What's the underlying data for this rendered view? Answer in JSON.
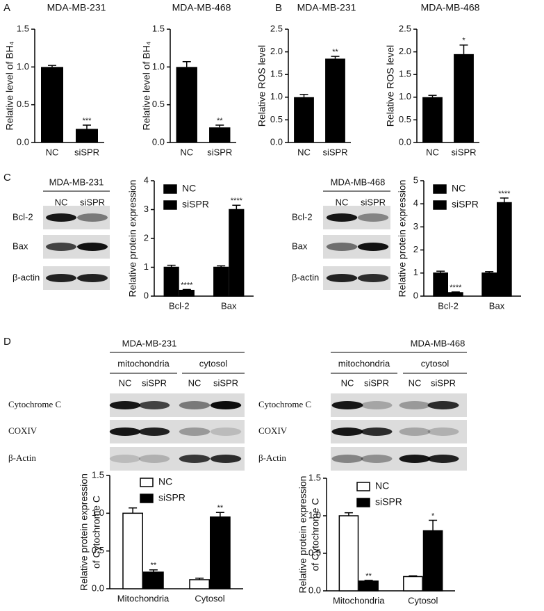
{
  "panel_labels": [
    "A",
    "B",
    "C",
    "D"
  ],
  "blots": [
    {
      "title": "MDA-MB-231",
      "lanes": [
        "NC",
        "siSPR"
      ],
      "rows": [
        "Bcl-2",
        "Bax",
        "β-actin"
      ]
    },
    {
      "title": "MDA-MB-468",
      "lanes": [
        "NC",
        "siSPR"
      ],
      "rows": [
        "Bcl-2",
        "Bax",
        "β-actin"
      ]
    },
    {
      "title": "MDA-MB-231",
      "groups": [
        "mitochondria",
        "cytosol"
      ],
      "lanes": [
        "NC",
        "siSPR",
        "NC",
        "siSPR"
      ],
      "rows": [
        "Cytochrome C",
        "COXIV",
        "β-Actin"
      ]
    },
    {
      "title": "MDA-MB-468",
      "groups": [
        "mitochondria",
        "cytosol"
      ],
      "lanes": [
        "NC",
        "siSPR",
        "NC",
        "siSPR"
      ],
      "rows": [
        "Cytochrome C",
        "COXIV",
        "β-Actin"
      ]
    }
  ],
  "chart_data": [
    {
      "type": "bar",
      "title": "MDA-MB-231",
      "y_label": "Relative level of BH₄",
      "categories": [
        "NC",
        "siSPR"
      ],
      "values": [
        1.0,
        0.18
      ],
      "errors": [
        0.02,
        0.05
      ],
      "markers": [
        null,
        "***"
      ],
      "color": "#000000",
      "ylim": [
        0,
        1.5
      ],
      "yticks": [
        {
          "value": 0,
          "label": "0.0"
        },
        0.5,
        {
          "value": 1,
          "label": "1.0"
        },
        1.5
      ]
    },
    {
      "type": "bar",
      "title": "MDA-MB-468",
      "y_label": "Relative level of BH₄",
      "categories": [
        "NC",
        "siSPR"
      ],
      "values": [
        1.0,
        0.2
      ],
      "errors": [
        0.07,
        0.03
      ],
      "markers": [
        null,
        "**"
      ],
      "color": "#000000",
      "ylim": [
        0,
        1.5
      ],
      "yticks": [
        {
          "value": 0,
          "label": "0.0"
        },
        0.5,
        {
          "value": 1,
          "label": "1.0"
        },
        1.5
      ]
    },
    {
      "type": "bar",
      "title": "MDA-MB-231",
      "y_label": "Relative ROS level",
      "categories": [
        "NC",
        "siSPR"
      ],
      "values": [
        1.0,
        1.85
      ],
      "errors": [
        0.06,
        0.05
      ],
      "markers": [
        null,
        "**"
      ],
      "color": "#000000",
      "ylim": [
        0,
        2.5
      ],
      "yticks": [
        {
          "value": 0,
          "label": "0.0"
        },
        0.5,
        {
          "value": 1,
          "label": "1.0"
        },
        1.5,
        {
          "value": 2,
          "label": "2.0"
        },
        2.5
      ]
    },
    {
      "type": "bar",
      "title": "MDA-MB-468",
      "y_label": "Relative ROS level",
      "categories": [
        "NC",
        "siSPR"
      ],
      "values": [
        1.0,
        1.95
      ],
      "errors": [
        0.04,
        0.2
      ],
      "markers": [
        null,
        "*"
      ],
      "color": "#000000",
      "ylim": [
        0,
        2.5
      ],
      "yticks": [
        {
          "value": 0,
          "label": "0.0"
        },
        0.5,
        {
          "value": 1,
          "label": "1.0"
        },
        1.5,
        {
          "value": 2,
          "label": "2.0"
        },
        2.5
      ]
    },
    {
      "type": "grouped_bar",
      "y_label": "Relative protein expression",
      "categories": [
        "Bcl-2",
        "Bax"
      ],
      "series": [
        {
          "name": "NC",
          "color": "#000000",
          "values": [
            1.0,
            1.0
          ],
          "errors": [
            0.07,
            0.05
          ]
        },
        {
          "name": "siSPR",
          "color": "#000000",
          "values": [
            0.2,
            3.0
          ],
          "errors": [
            0.03,
            0.15
          ],
          "markers": [
            "****",
            "****"
          ]
        }
      ],
      "ylim": [
        0,
        4
      ],
      "yticks": [
        0,
        1,
        2,
        3,
        4
      ],
      "legend": "top-left"
    },
    {
      "type": "grouped_bar",
      "y_label": "Relative protein expression",
      "categories": [
        "Bcl-2",
        "Bax"
      ],
      "series": [
        {
          "name": "NC",
          "color": "#000000",
          "values": [
            1.0,
            1.0
          ],
          "errors": [
            0.08,
            0.06
          ]
        },
        {
          "name": "siSPR",
          "color": "#000000",
          "values": [
            0.15,
            4.05
          ],
          "errors": [
            0.03,
            0.2
          ],
          "markers": [
            "****",
            "****"
          ]
        }
      ],
      "ylim": [
        0,
        5
      ],
      "yticks": [
        0,
        1,
        2,
        3,
        4,
        5
      ],
      "legend": "top-left"
    },
    {
      "type": "grouped_bar",
      "y_label": [
        "Relative protein expression",
        "of Cytochrome C"
      ],
      "categories": [
        "Mitochondria",
        "Cytosol"
      ],
      "series": [
        {
          "name": "NC",
          "color": "#ffffff",
          "values": [
            1.0,
            0.12
          ],
          "errors": [
            0.07,
            0.02
          ]
        },
        {
          "name": "siSPR",
          "color": "#000000",
          "values": [
            0.22,
            0.95
          ],
          "errors": [
            0.03,
            0.06
          ],
          "markers": [
            "**",
            "**"
          ]
        }
      ],
      "ylim": [
        0,
        1.5
      ],
      "yticks": [
        {
          "value": 0,
          "label": "0.0"
        },
        0.5,
        {
          "value": 1,
          "label": "1.0"
        },
        1.5
      ],
      "legend": "top-left"
    },
    {
      "type": "grouped_bar",
      "y_label": [
        "Relative protein expression",
        "of Cytochrome C"
      ],
      "categories": [
        "Mitochondria",
        "Cytosol"
      ],
      "series": [
        {
          "name": "NC",
          "color": "#ffffff",
          "values": [
            1.0,
            0.19
          ],
          "errors": [
            0.04,
            0.01
          ]
        },
        {
          "name": "siSPR",
          "color": "#000000",
          "values": [
            0.13,
            0.8
          ],
          "errors": [
            0.01,
            0.14
          ],
          "markers": [
            "**",
            "*"
          ]
        }
      ],
      "ylim": [
        0,
        1.5
      ],
      "yticks": [
        {
          "value": 0,
          "label": "0.0"
        },
        0.5,
        {
          "value": 1,
          "label": "1.0"
        },
        1.5
      ],
      "legend": "top-left"
    }
  ]
}
